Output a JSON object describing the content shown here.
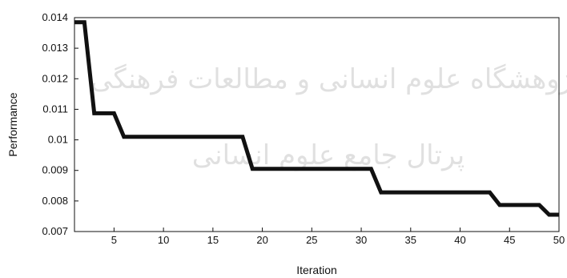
{
  "watermark": {
    "line1": "پژوهشگاه علوم انسانی و مطالعات فرهنگی",
    "line2": "پرتال جامع علوم انسانی"
  },
  "chart_data": {
    "type": "line",
    "xlabel": "Iteration",
    "ylabel": "Performance",
    "xlim": [
      1,
      50
    ],
    "ylim": [
      0.007,
      0.014
    ],
    "xticks": [
      5,
      10,
      15,
      20,
      25,
      30,
      35,
      40,
      45,
      50
    ],
    "xtick_labels": [
      "5",
      "10",
      "15",
      "20",
      "25",
      "30",
      "35",
      "40",
      "45",
      "50"
    ],
    "yticks": [
      0.007,
      0.008,
      0.009,
      0.01,
      0.011,
      0.012,
      0.013,
      0.014
    ],
    "ytick_labels": [
      "0.007",
      "0.008",
      "0.009",
      "0.01",
      "0.011",
      "0.012",
      "0.013",
      "0.014"
    ],
    "grid": false,
    "color": "#111111",
    "series": [
      {
        "x": [
          1,
          2,
          3,
          4,
          5,
          6,
          7,
          8,
          9,
          10,
          11,
          12,
          13,
          14,
          15,
          16,
          17,
          18,
          19,
          20,
          21,
          22,
          23,
          24,
          25,
          26,
          27,
          28,
          29,
          30,
          31,
          32,
          33,
          34,
          35,
          36,
          37,
          38,
          39,
          40,
          41,
          42,
          43,
          44,
          45,
          46,
          47,
          48,
          49,
          50
        ],
        "values": [
          0.01385,
          0.01385,
          0.01087,
          0.01087,
          0.01087,
          0.0101,
          0.0101,
          0.0101,
          0.0101,
          0.0101,
          0.0101,
          0.0101,
          0.0101,
          0.0101,
          0.0101,
          0.0101,
          0.0101,
          0.0101,
          0.00905,
          0.00905,
          0.00905,
          0.00905,
          0.00905,
          0.00905,
          0.00905,
          0.00905,
          0.00905,
          0.00905,
          0.00905,
          0.00905,
          0.00905,
          0.00828,
          0.00828,
          0.00828,
          0.00828,
          0.00828,
          0.00828,
          0.00828,
          0.00828,
          0.00828,
          0.00828,
          0.00828,
          0.00828,
          0.00787,
          0.00787,
          0.00787,
          0.00787,
          0.00787,
          0.00755,
          0.00755
        ]
      }
    ]
  }
}
